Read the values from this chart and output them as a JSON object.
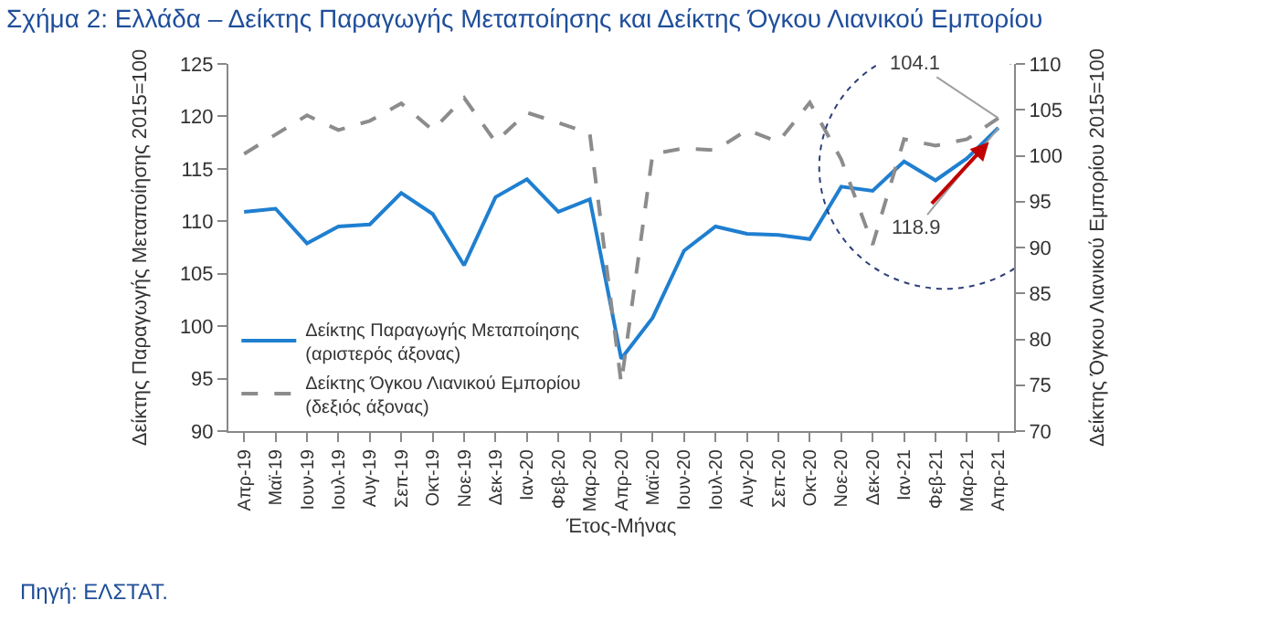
{
  "chart_data": {
    "type": "line",
    "title": "Σχήμα 2: Ελλάδα – Δείκτης Παραγωγής Μεταποίησης και Δείκτης Όγκου Λιανικού Εμπορίου",
    "xlabel": "Έτος-Μήνας",
    "ylabel": "Δείκτης Παραγωγής Μεταποίησης 2015=100",
    "y2label": "Δείκτης Όγκου Λιανικού Εμπορίου 2015=100",
    "annotations": [
      "Πηγή: ΕΛΣΤΑΤ."
    ],
    "categories": [
      "Απρ-19",
      "Μαϊ-19",
      "Ιουν-19",
      "Ιουλ-19",
      "Αυγ-19",
      "Σεπ-19",
      "Οκτ-19",
      "Νοε-19",
      "Δεκ-19",
      "Ιαν-20",
      "Φεβ-20",
      "Μαρ-20",
      "Απρ-20",
      "Μαϊ-20",
      "Ιουν-20",
      "Ιουλ-20",
      "Αυγ-20",
      "Σεπ-20",
      "Οκτ-20",
      "Νοε-20",
      "Δεκ-20",
      "Ιαν-21",
      "Φεβ-21",
      "Μαρ-21",
      "Απρ-21"
    ],
    "series": [
      {
        "name": "Δείκτης Παραγωγής Μεταποίησης (αριστερός άξονας)",
        "color": "#1f7fd0",
        "line_style": "solid",
        "values": [
          110.9,
          111.2,
          107.9,
          109.5,
          109.7,
          112.7,
          110.7,
          105.8,
          112.3,
          114.0,
          110.9,
          112.1,
          96.9,
          100.8,
          107.2,
          109.5,
          108.8,
          108.7,
          108.3,
          113.3,
          112.9,
          115.7,
          113.9,
          116.0,
          118.9
        ],
        "value_labels": [
          null,
          null,
          null,
          null,
          null,
          null,
          null,
          null,
          null,
          null,
          null,
          null,
          null,
          null,
          null,
          null,
          null,
          null,
          null,
          null,
          null,
          null,
          null,
          null,
          "118.9"
        ]
      },
      {
        "name": "Δείκτης Όγκου Λιανικού Εμπορίου (δεξιός άξονας)",
        "color": "#8c8c8c",
        "line_style": "dashed",
        "axis": "y2",
        "values": [
          100.2,
          102.3,
          104.4,
          102.8,
          103.8,
          105.7,
          102.8,
          106.3,
          101.5,
          104.7,
          103.6,
          102.4,
          75.2,
          100.2,
          100.8,
          100.6,
          102.8,
          101.5,
          105.8,
          99.6,
          90.3,
          101.8,
          101.1,
          101.8,
          104.1
        ],
        "value_labels": [
          null,
          null,
          null,
          null,
          null,
          null,
          null,
          null,
          null,
          null,
          null,
          null,
          null,
          null,
          null,
          null,
          null,
          null,
          null,
          null,
          null,
          null,
          null,
          null,
          "104.1"
        ]
      }
    ],
    "ylim": [
      90,
      125
    ],
    "yticks": [
      90,
      95,
      100,
      105,
      110,
      115,
      120,
      125
    ],
    "y2lim": [
      70,
      110
    ],
    "y2ticks": [
      70,
      75,
      80,
      85,
      90,
      95,
      100,
      105,
      110
    ],
    "legend": "bottom left",
    "marker": "none"
  }
}
